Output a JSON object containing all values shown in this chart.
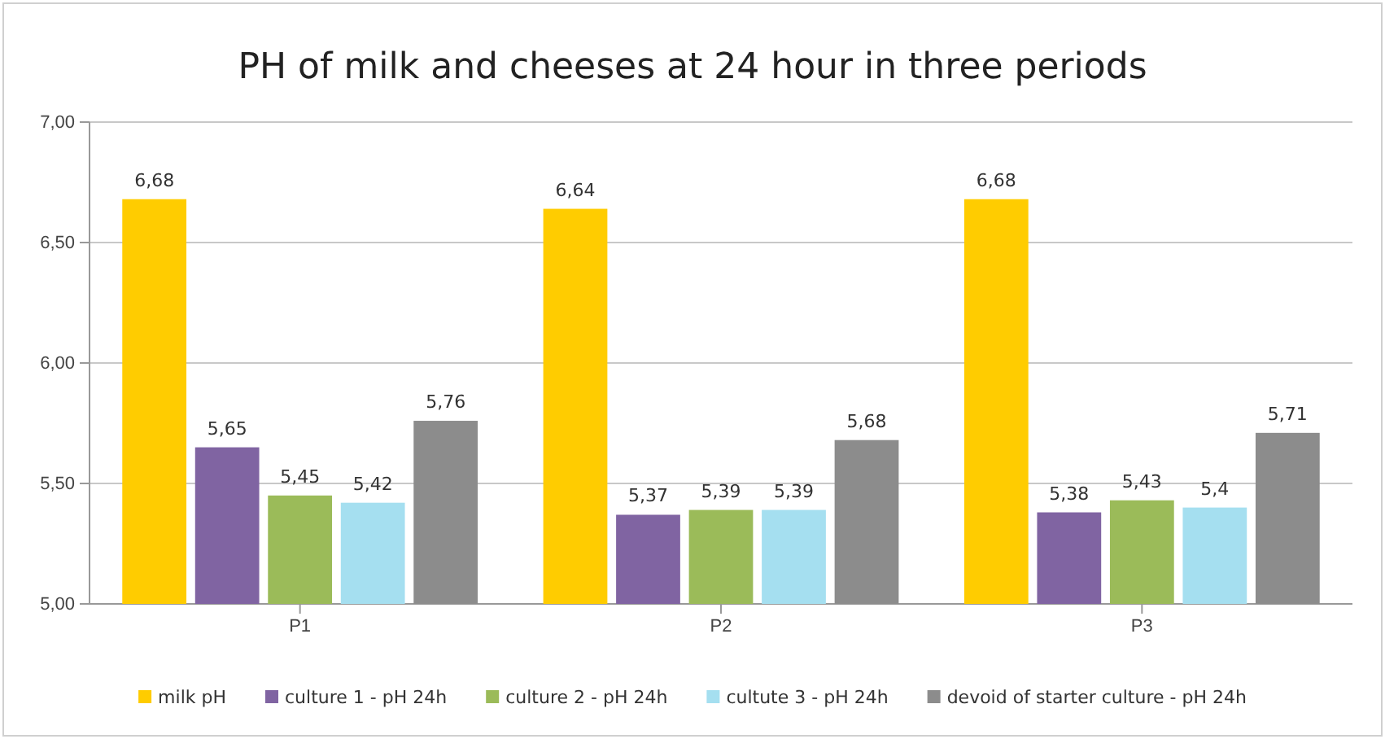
{
  "chart_data": {
    "type": "bar",
    "title": "PH of milk and cheeses at 24 hour in three periods",
    "categories": [
      "P1",
      "P2",
      "P3"
    ],
    "series": [
      {
        "name": "milk pH",
        "color": "#ffcc00",
        "values": [
          6.68,
          6.64,
          6.68
        ],
        "value_labels": [
          "6,68",
          "6,64",
          "6,68"
        ]
      },
      {
        "name": "culture 1 - pH 24h",
        "color": "#8064a2",
        "values": [
          5.65,
          5.37,
          5.38
        ],
        "value_labels": [
          "5,65",
          "5,37",
          "5,38"
        ]
      },
      {
        "name": "culture 2 - pH 24h",
        "color": "#9bbb59",
        "values": [
          5.45,
          5.39,
          5.43
        ],
        "value_labels": [
          "5,45",
          "5,39",
          "5,43"
        ]
      },
      {
        "name": "cultute 3 - pH 24h",
        "color": "#a5dff0",
        "values": [
          5.42,
          5.39,
          5.4
        ],
        "value_labels": [
          "5,42",
          "5,39",
          "5,4"
        ]
      },
      {
        "name": "devoid of starter culture - pH 24h",
        "color": "#8c8c8c",
        "values": [
          5.76,
          5.68,
          5.71
        ],
        "value_labels": [
          "5,76",
          "5,68",
          "5,71"
        ]
      }
    ],
    "ylim": [
      5,
      7
    ],
    "yticks": [
      {
        "value": 5,
        "label": "5,00"
      },
      {
        "value": 5.5,
        "label": "5,50"
      },
      {
        "value": 6,
        "label": "6,00"
      },
      {
        "value": 6.5,
        "label": "6,50"
      },
      {
        "value": 7,
        "label": "7,00"
      }
    ],
    "grid": "y",
    "legend": "bottom"
  }
}
